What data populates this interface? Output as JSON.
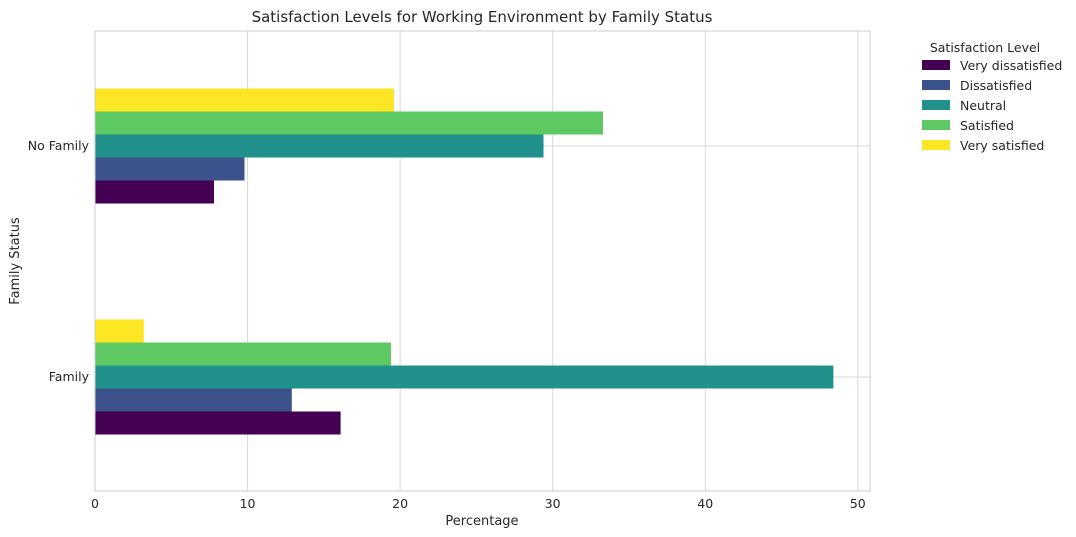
{
  "chart_data": {
    "type": "bar",
    "orientation": "horizontal",
    "title": "Satisfaction Levels for Working Environment by Family Status",
    "xlabel": "Percentage",
    "ylabel": "Family Status",
    "categories": [
      "Family",
      "No Family"
    ],
    "series": [
      {
        "name": "Very dissatisfied",
        "color": "#440154",
        "values": [
          16.1,
          7.8
        ]
      },
      {
        "name": "Dissatisfied",
        "color": "#3b528b",
        "values": [
          12.9,
          9.8
        ]
      },
      {
        "name": "Neutral",
        "color": "#21918c",
        "values": [
          48.4,
          29.4
        ]
      },
      {
        "name": "Satisfied",
        "color": "#5ec962",
        "values": [
          19.4,
          33.3
        ]
      },
      {
        "name": "Very satisfied",
        "color": "#fde725",
        "values": [
          3.2,
          19.6
        ]
      }
    ],
    "xlim": [
      0,
      50.8
    ],
    "xticks": [
      0,
      10,
      20,
      30,
      40,
      50
    ],
    "grid": true,
    "legend_title": "Satisfaction Level",
    "legend_position": "outside-right"
  }
}
